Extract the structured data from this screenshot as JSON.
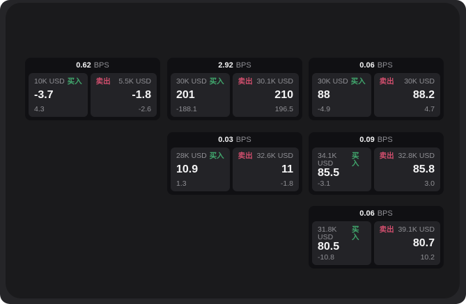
{
  "app": {
    "page_bg": "#252528",
    "window_bg": "#1a1a1c",
    "card_bg": "#101013",
    "pane_bg": "#232327",
    "buy_color": "#41a76d",
    "sell_color": "#d04e6d",
    "text_bright": "#f4f4f5",
    "text_dim": "#8f8f94"
  },
  "labels": {
    "bps_suffix": "BPS",
    "buy": "买入",
    "sell": "卖出"
  },
  "cards": [
    {
      "bps": "0.62",
      "row": 1,
      "col": 1,
      "buy": {
        "size": "10K USD",
        "price": "-3.7",
        "change": "4.3"
      },
      "sell": {
        "size": "5.5K USD",
        "price": "-1.8",
        "change": "-2.6"
      }
    },
    {
      "bps": "2.92",
      "row": 1,
      "col": 2,
      "buy": {
        "size": "30K USD",
        "price": "201",
        "change": "-188.1"
      },
      "sell": {
        "size": "30.1K USD",
        "price": "210",
        "change": "196.5"
      }
    },
    {
      "bps": "0.06",
      "row": 1,
      "col": 3,
      "buy": {
        "size": "30K USD",
        "price": "88",
        "change": "-4.9"
      },
      "sell": {
        "size": "30K USD",
        "price": "88.2",
        "change": "4.7"
      }
    },
    {
      "bps": "0.03",
      "row": 2,
      "col": 2,
      "buy": {
        "size": "28K USD",
        "price": "10.9",
        "change": "1.3"
      },
      "sell": {
        "size": "32.6K USD",
        "price": "11",
        "change": "-1.8"
      }
    },
    {
      "bps": "0.09",
      "row": 2,
      "col": 3,
      "buy": {
        "size": "34.1K USD",
        "price": "85.5",
        "change": "-3.1"
      },
      "sell": {
        "size": "32.8K USD",
        "price": "85.8",
        "change": "3.0"
      }
    },
    {
      "bps": "0.06",
      "row": 3,
      "col": 3,
      "buy": {
        "size": "31.8K USD",
        "price": "80.5",
        "change": "-10.8"
      },
      "sell": {
        "size": "39.1K USD",
        "price": "80.7",
        "change": "10.2"
      }
    }
  ]
}
